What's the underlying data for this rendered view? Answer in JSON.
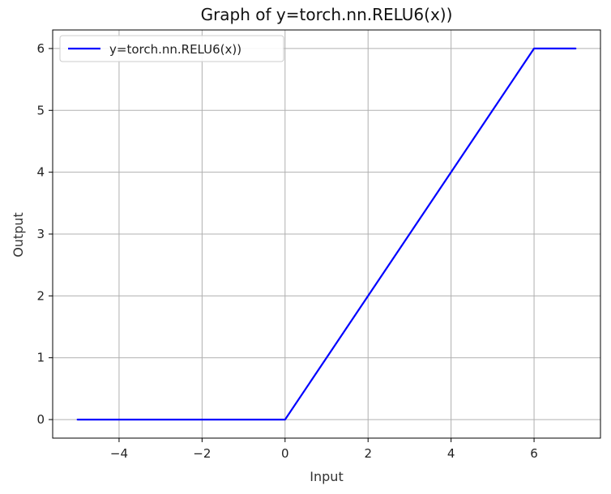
{
  "chart_data": {
    "type": "line",
    "title": "Graph of y=torch.nn.RELU6(x))",
    "xlabel": "Input",
    "ylabel": "Output",
    "xlim": [
      -5.6,
      7.6
    ],
    "ylim": [
      -0.3,
      6.3
    ],
    "x_ticks": [
      -4,
      -2,
      0,
      2,
      4,
      6
    ],
    "x_tick_labels": [
      "−4",
      "−2",
      "0",
      "2",
      "4",
      "6"
    ],
    "y_ticks": [
      0,
      1,
      2,
      3,
      4,
      5,
      6
    ],
    "y_tick_labels": [
      "0",
      "1",
      "2",
      "3",
      "4",
      "5",
      "6"
    ],
    "grid": true,
    "legend": {
      "placement": "top-left",
      "entries": [
        "y=torch.nn.RELU6(x))"
      ]
    },
    "series": [
      {
        "name": "y=torch.nn.RELU6(x))",
        "color": "#0000ff",
        "x": [
          -5,
          -4,
          -3,
          -2,
          -1,
          0,
          1,
          2,
          3,
          4,
          5,
          6,
          7
        ],
        "y": [
          0,
          0,
          0,
          0,
          0,
          0,
          1,
          2,
          3,
          4,
          5,
          6,
          6
        ]
      }
    ]
  }
}
